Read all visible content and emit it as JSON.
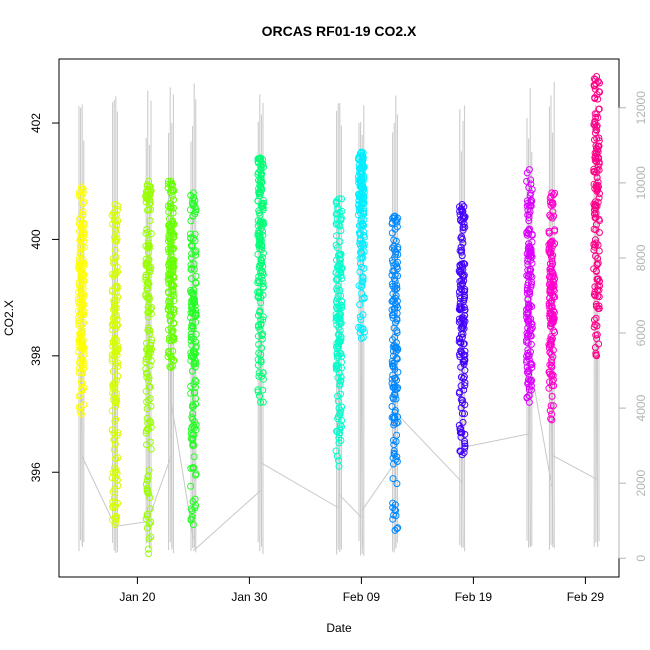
{
  "chart_data": {
    "type": "scatter",
    "title": "ORCAS RF01-19 CO2.X",
    "xlabel": "Date",
    "ylabel": "CO2.X",
    "x_ticks": [
      "Jan 20",
      "Jan 30",
      "Feb 09",
      "Feb 19",
      "Feb 29"
    ],
    "y_ticks": [
      "396",
      "398",
      "400",
      "402"
    ],
    "y2_ticks": [
      "0",
      "2000",
      "4000",
      "6000",
      "8000",
      "10000",
      "12000"
    ],
    "xlim": [
      "2016-01-13",
      "2016-03-03"
    ],
    "ylim": [
      394.2,
      403.1
    ],
    "y2lim": [
      -500,
      13300
    ],
    "altitude_color": "#c8c8c8",
    "series": [
      {
        "date": "2016-01-15",
        "co2_range": [
          397.0,
          400.9
        ],
        "co2_mean": 399.0,
        "color": "#ffff00",
        "alt_end": 2750
      },
      {
        "date": "2016-01-18",
        "co2_range": [
          395.1,
          400.6
        ],
        "co2_mean": 398.6,
        "color": "#d4ff00",
        "alt_end": 850
      },
      {
        "date": "2016-01-21",
        "co2_range": [
          394.6,
          401.0
        ],
        "co2_mean": 398.8,
        "color": "#99ff00",
        "alt_end": 1050
      },
      {
        "date": "2016-01-23",
        "co2_range": [
          397.8,
          401.0
        ],
        "co2_mean": 399.5,
        "color": "#66ff00",
        "alt_end": 4200
      },
      {
        "date": "2016-01-25",
        "co2_range": [
          395.1,
          400.8
        ],
        "co2_mean": 398.4,
        "color": "#22ff22",
        "alt_end": 200
      },
      {
        "date": "2016-01-31",
        "co2_range": [
          397.2,
          401.4
        ],
        "co2_mean": 400.1,
        "color": "#00ff77",
        "alt_end": 2550
      },
      {
        "date": "2016-02-07",
        "co2_range": [
          396.1,
          400.7
        ],
        "co2_mean": 398.9,
        "color": "#00ffcc",
        "alt_end": 1700
      },
      {
        "date": "2016-02-09",
        "co2_range": [
          398.3,
          401.5
        ],
        "co2_mean": 400.8,
        "color": "#00eeff",
        "alt_end": 1250
      },
      {
        "date": "2016-02-12",
        "co2_range": [
          395.0,
          400.4
        ],
        "co2_mean": 398.5,
        "color": "#0088ff",
        "alt_end": 3900
      },
      {
        "date": "2016-02-18",
        "co2_range": [
          396.3,
          400.6
        ],
        "co2_mean": 398.9,
        "color": "#4400ff",
        "alt_end": 2950
      },
      {
        "date": "2016-02-24",
        "co2_range": [
          397.2,
          401.2
        ],
        "co2_mean": 399.3,
        "color": "#dd00ff",
        "alt_end": 5300
      },
      {
        "date": "2016-02-26",
        "co2_range": [
          396.9,
          400.8
        ],
        "co2_mean": 398.8,
        "color": "#ff00cc",
        "alt_end": 2750
      },
      {
        "date": "2016-03-01",
        "co2_range": [
          398.0,
          402.8
        ],
        "co2_mean": 400.6,
        "color": "#ff0088",
        "alt_end": 3100
      }
    ]
  }
}
